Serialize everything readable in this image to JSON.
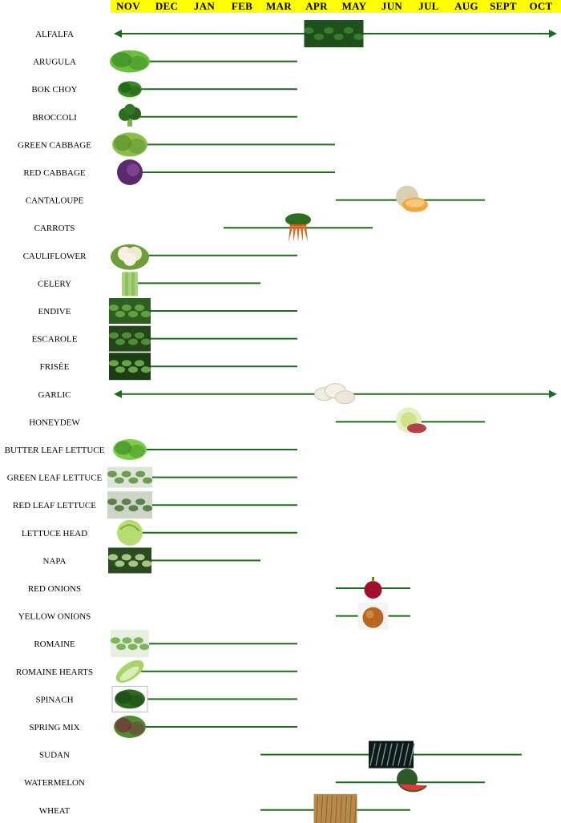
{
  "colors": {
    "header_band": "#ffff00",
    "season_line": "#1e6b1e",
    "background": "#ffffff"
  },
  "chart_data": {
    "type": "gantt",
    "title": "",
    "months": [
      "NOV",
      "DEC",
      "JAN",
      "FEB",
      "MAR",
      "APR",
      "MAY",
      "JUN",
      "JUL",
      "AUG",
      "SEPT",
      "OCT"
    ],
    "crops": [
      {
        "name": "ALFALFA",
        "start": "NOV",
        "end": "OCT",
        "year_round": true,
        "icon": "alfalfa-photo"
      },
      {
        "name": "ARUGULA",
        "start": "NOV",
        "end": "MAR",
        "year_round": false,
        "icon": "arugula-photo"
      },
      {
        "name": "BOK CHOY",
        "start": "NOV",
        "end": "MAR",
        "year_round": false,
        "icon": "bok-choy-photo"
      },
      {
        "name": "BROCCOLI",
        "start": "NOV",
        "end": "MAR",
        "year_round": false,
        "icon": "broccoli-photo"
      },
      {
        "name": "GREEN CABBAGE",
        "start": "NOV",
        "end": "APR",
        "year_round": false,
        "icon": "green-cabbage-photo"
      },
      {
        "name": "RED CABBAGE",
        "start": "NOV",
        "end": "APR",
        "year_round": false,
        "icon": "red-cabbage-photo"
      },
      {
        "name": "CANTALOUPE",
        "start": "MAY",
        "end": "AUG",
        "year_round": false,
        "icon": "cantaloupe-photo"
      },
      {
        "name": "CARROTS",
        "start": "FEB",
        "end": "MAY",
        "year_round": false,
        "icon": "carrots-photo"
      },
      {
        "name": "CAULIFLOWER",
        "start": "NOV",
        "end": "MAR",
        "year_round": false,
        "icon": "cauliflower-photo"
      },
      {
        "name": "CELERY",
        "start": "NOV",
        "end": "FEB",
        "year_round": false,
        "icon": "celery-photo"
      },
      {
        "name": "ENDIVE",
        "start": "NOV",
        "end": "MAR",
        "year_round": false,
        "icon": "endive-photo"
      },
      {
        "name": "ESCAROLE",
        "start": "NOV",
        "end": "MAR",
        "year_round": false,
        "icon": "escarole-photo"
      },
      {
        "name": "FRISÉE",
        "start": "NOV",
        "end": "MAR",
        "year_round": false,
        "icon": "frisee-photo"
      },
      {
        "name": "GARLIC",
        "start": "NOV",
        "end": "OCT",
        "year_round": true,
        "icon": "garlic-photo"
      },
      {
        "name": "HONEYDEW",
        "start": "MAY",
        "end": "AUG",
        "year_round": false,
        "icon": "honeydew-photo"
      },
      {
        "name": "BUTTER LEAF LETTUCE",
        "start": "NOV",
        "end": "MAR",
        "year_round": false,
        "icon": "butter-leaf-lettuce-photo"
      },
      {
        "name": "GREEN LEAF LETTUCE",
        "start": "NOV",
        "end": "MAR",
        "year_round": false,
        "icon": "green-leaf-lettuce-photo"
      },
      {
        "name": "RED LEAF LETTUCE",
        "start": "NOV",
        "end": "MAR",
        "year_round": false,
        "icon": "red-leaf-lettuce-photo"
      },
      {
        "name": "LETTUCE HEAD",
        "start": "NOV",
        "end": "MAR",
        "year_round": false,
        "icon": "lettuce-head-photo"
      },
      {
        "name": "NAPA",
        "start": "NOV",
        "end": "FEB",
        "year_round": false,
        "icon": "napa-photo"
      },
      {
        "name": "RED ONIONS",
        "start": "MAY",
        "end": "JUN",
        "year_round": false,
        "icon": "red-onion-photo"
      },
      {
        "name": "YELLOW ONIONS",
        "start": "MAY",
        "end": "JUN",
        "year_round": false,
        "icon": "yellow-onion-photo"
      },
      {
        "name": "ROMAINE",
        "start": "NOV",
        "end": "MAR",
        "year_round": false,
        "icon": "romaine-photo"
      },
      {
        "name": "ROMAINE HEARTS",
        "start": "NOV",
        "end": "MAR",
        "year_round": false,
        "icon": "romaine-hearts-photo"
      },
      {
        "name": "SPINACH",
        "start": "NOV",
        "end": "MAR",
        "year_round": false,
        "icon": "spinach-photo"
      },
      {
        "name": "SPRING MIX",
        "start": "NOV",
        "end": "MAR",
        "year_round": false,
        "icon": "spring-mix-photo"
      },
      {
        "name": "SUDAN",
        "start": "MAR",
        "end": "SEPT",
        "year_round": false,
        "icon": "sudan-grass-photo"
      },
      {
        "name": "WATERMELON",
        "start": "MAY",
        "end": "AUG",
        "year_round": false,
        "icon": "watermelon-photo"
      },
      {
        "name": "WHEAT",
        "start": "MAR",
        "end": "JUN",
        "year_round": false,
        "icon": "wheat-photo"
      }
    ]
  }
}
